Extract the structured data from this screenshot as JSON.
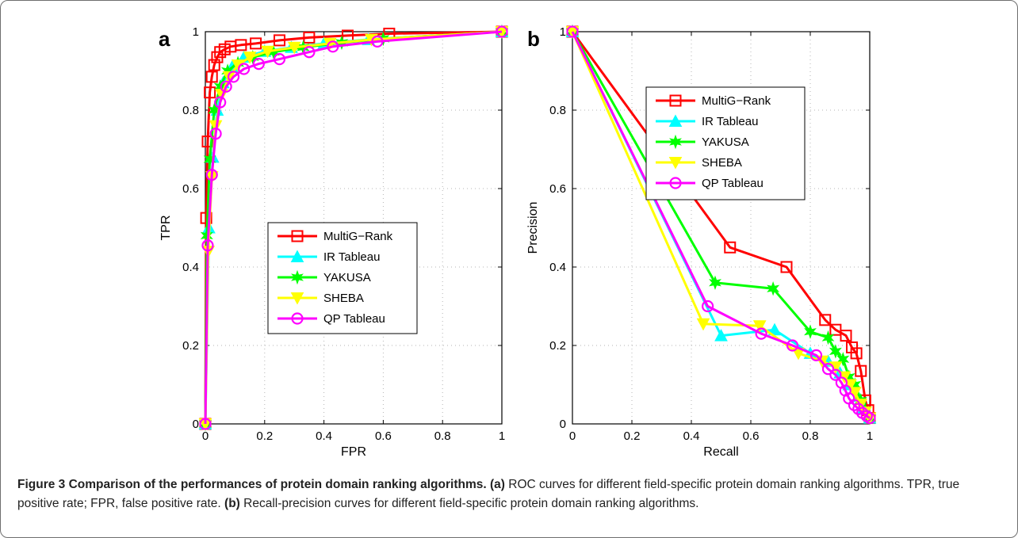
{
  "caption": {
    "bold_a": "Figure 3 Comparison of the performances of protein domain ranking algorithms.",
    "ref_a": "(a)",
    "text_a": "ROC curves for different field-specific protein domain ranking algorithms. TPR, true positive rate; FPR, false positive rate.",
    "ref_b": "(b)",
    "text_b": "Recall-precision curves for different field-specific protein domain ranking algorithms."
  },
  "chart_data": [
    {
      "type": "line",
      "panel": "a",
      "xlabel": "FPR",
      "ylabel": "TPR",
      "xlim": [
        0,
        1
      ],
      "ylim": [
        0,
        1
      ],
      "xticks": [
        0,
        0.2,
        0.4,
        0.6,
        0.8,
        1
      ],
      "yticks": [
        0,
        0.2,
        0.4,
        0.6,
        0.8,
        1
      ],
      "xtick_labels": [
        "0",
        "0.2",
        "0.4",
        "0.6",
        "0.8",
        "1"
      ],
      "ytick_labels": [
        "0",
        "0.2",
        "0.4",
        "0.6",
        "0.8",
        "1"
      ],
      "grid": true,
      "legend_position": "center-right",
      "series": [
        {
          "name": "MultiG−Rank",
          "color": "#ff0000",
          "marker": "square",
          "x": [
            0,
            0.003,
            0.008,
            0.015,
            0.022,
            0.03,
            0.04,
            0.05,
            0.065,
            0.085,
            0.12,
            0.17,
            0.25,
            0.35,
            0.48,
            0.62,
            1.0
          ],
          "y": [
            0,
            0.525,
            0.72,
            0.845,
            0.885,
            0.915,
            0.935,
            0.948,
            0.955,
            0.962,
            0.966,
            0.97,
            0.978,
            0.985,
            0.99,
            0.995,
            1.0
          ]
        },
        {
          "name": "IR Tableau",
          "color": "#00ffff",
          "marker": "triangle-up",
          "x": [
            0,
            0.012,
            0.025,
            0.04,
            0.06,
            0.09,
            0.13,
            0.2,
            0.29,
            0.4,
            0.55,
            1.0
          ],
          "y": [
            0,
            0.5,
            0.68,
            0.8,
            0.87,
            0.91,
            0.935,
            0.95,
            0.96,
            0.97,
            0.98,
            1.0
          ]
        },
        {
          "name": "YAKUSA",
          "color": "#00ff00",
          "marker": "star",
          "x": [
            0,
            0.005,
            0.015,
            0.03,
            0.05,
            0.075,
            0.11,
            0.16,
            0.23,
            0.33,
            0.46,
            0.6,
            1.0
          ],
          "y": [
            0,
            0.48,
            0.675,
            0.8,
            0.86,
            0.9,
            0.92,
            0.935,
            0.948,
            0.96,
            0.972,
            0.982,
            1.0
          ]
        },
        {
          "name": "SHEBA",
          "color": "#ffff00",
          "marker": "triangle-down",
          "x": [
            0,
            0.01,
            0.022,
            0.035,
            0.055,
            0.08,
            0.11,
            0.15,
            0.21,
            0.3,
            0.42,
            0.56,
            1.0
          ],
          "y": [
            0,
            0.44,
            0.63,
            0.76,
            0.84,
            0.885,
            0.915,
            0.935,
            0.95,
            0.96,
            0.97,
            0.98,
            1.0
          ]
        },
        {
          "name": "QP Tableau",
          "color": "#ff00ff",
          "marker": "circle",
          "x": [
            0,
            0.008,
            0.022,
            0.035,
            0.05,
            0.07,
            0.095,
            0.13,
            0.18,
            0.25,
            0.35,
            0.43,
            0.58,
            1.0
          ],
          "y": [
            0,
            0.455,
            0.635,
            0.74,
            0.82,
            0.86,
            0.885,
            0.905,
            0.918,
            0.93,
            0.948,
            0.962,
            0.975,
            1.0
          ]
        }
      ]
    },
    {
      "type": "line",
      "panel": "b",
      "xlabel": "Recall",
      "ylabel": "Precision",
      "xlim": [
        0,
        1
      ],
      "ylim": [
        0,
        1
      ],
      "xticks": [
        0,
        0.2,
        0.4,
        0.6,
        0.8,
        1
      ],
      "yticks": [
        0,
        0.2,
        0.4,
        0.6,
        0.8,
        1
      ],
      "xtick_labels": [
        "0",
        "0.2",
        "0.4",
        "0.6",
        "0.8",
        "1"
      ],
      "ytick_labels": [
        "0",
        "0.2",
        "0.4",
        "0.6",
        "0.8",
        "1"
      ],
      "grid": true,
      "legend_position": "top-center",
      "series": [
        {
          "name": "MultiG−Rank",
          "color": "#ff0000",
          "marker": "square",
          "x": [
            0,
            0.53,
            0.72,
            0.85,
            0.885,
            0.92,
            0.94,
            0.955,
            0.97,
            0.985,
            0.995,
            1.0
          ],
          "y": [
            1,
            0.45,
            0.4,
            0.265,
            0.24,
            0.225,
            0.195,
            0.18,
            0.135,
            0.06,
            0.035,
            0.015
          ]
        },
        {
          "name": "IR Tableau",
          "color": "#00ffff",
          "marker": "triangle-up",
          "x": [
            0,
            0.5,
            0.68,
            0.8,
            0.86,
            0.9,
            0.93,
            0.96,
            0.98,
            1.0
          ],
          "y": [
            1,
            0.225,
            0.24,
            0.18,
            0.16,
            0.13,
            0.1,
            0.07,
            0.04,
            0.015
          ]
        },
        {
          "name": "YAKUSA",
          "color": "#00ff00",
          "marker": "star",
          "x": [
            0,
            0.48,
            0.675,
            0.8,
            0.86,
            0.885,
            0.91,
            0.93,
            0.95,
            0.97,
            0.985,
            1.0
          ],
          "y": [
            1,
            0.36,
            0.345,
            0.235,
            0.22,
            0.185,
            0.165,
            0.12,
            0.1,
            0.06,
            0.035,
            0.015
          ]
        },
        {
          "name": "SHEBA",
          "color": "#ffff00",
          "marker": "triangle-down",
          "x": [
            0,
            0.44,
            0.63,
            0.76,
            0.84,
            0.885,
            0.915,
            0.935,
            0.95,
            0.97,
            0.985,
            1.0
          ],
          "y": [
            1,
            0.255,
            0.25,
            0.18,
            0.16,
            0.145,
            0.12,
            0.1,
            0.08,
            0.05,
            0.03,
            0.015
          ]
        },
        {
          "name": "QP Tableau",
          "color": "#ff00ff",
          "marker": "circle",
          "x": [
            0,
            0.455,
            0.635,
            0.74,
            0.82,
            0.86,
            0.885,
            0.905,
            0.918,
            0.93,
            0.948,
            0.962,
            0.975,
            0.99,
            1.0
          ],
          "y": [
            1,
            0.3,
            0.23,
            0.2,
            0.175,
            0.14,
            0.125,
            0.105,
            0.085,
            0.065,
            0.048,
            0.038,
            0.028,
            0.02,
            0.015
          ]
        }
      ]
    }
  ]
}
